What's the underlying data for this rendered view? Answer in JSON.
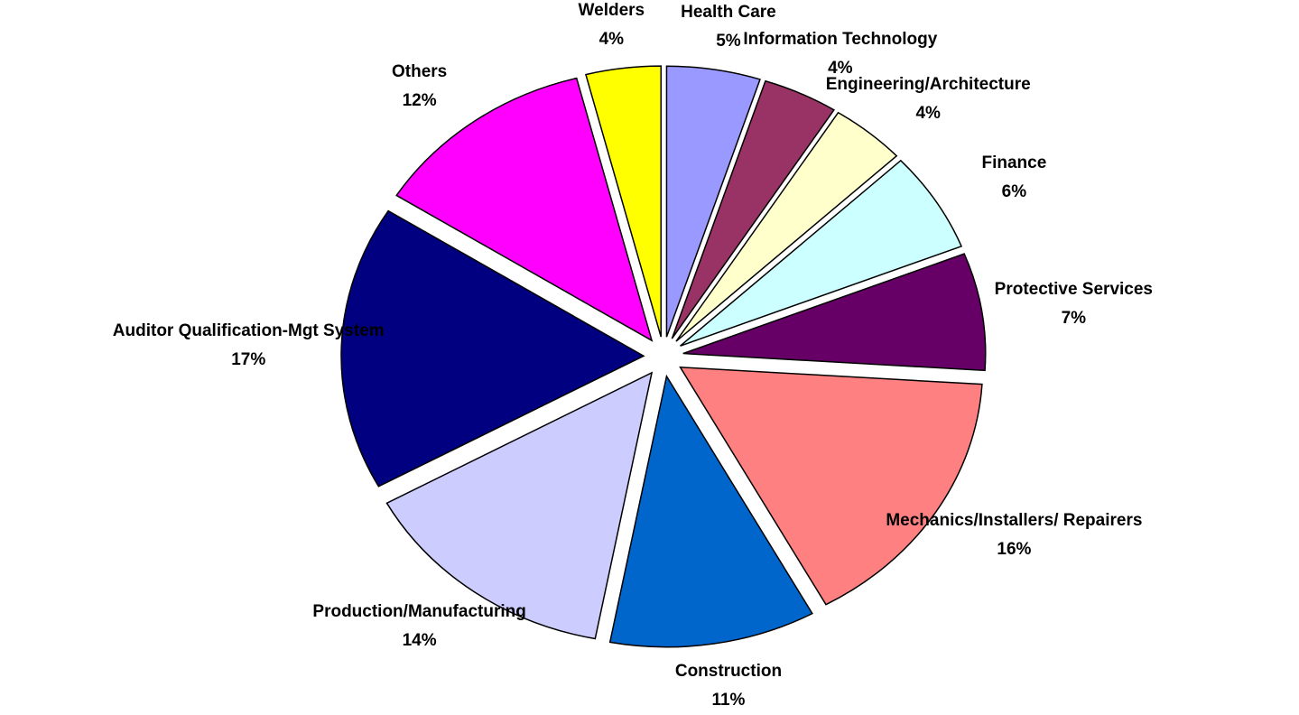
{
  "chart_data": {
    "type": "pie",
    "categories": [
      "Health Care",
      "Information Technology",
      "Engineering/Architecture",
      "Finance",
      "Protective Services",
      "Mechanics/Installers/ Repairers",
      "Construction",
      "Production/Manufacturing",
      "Auditor Qualification-Mgt System",
      "Others",
      "Welders"
    ],
    "values": [
      5,
      4,
      4,
      6,
      7,
      16,
      11,
      14,
      17,
      12,
      4
    ],
    "value_labels": [
      "5%",
      "4%",
      "4%",
      "6%",
      "7%",
      "16%",
      "11%",
      "14%",
      "17%",
      "12%",
      "4%"
    ],
    "colors": [
      "#9999ff",
      "#993366",
      "#ffffcc",
      "#ccffff",
      "#660066",
      "#ff8080",
      "#0066cc",
      "#ccccff",
      "#000080",
      "#ff00ff",
      "#ffff00"
    ]
  }
}
